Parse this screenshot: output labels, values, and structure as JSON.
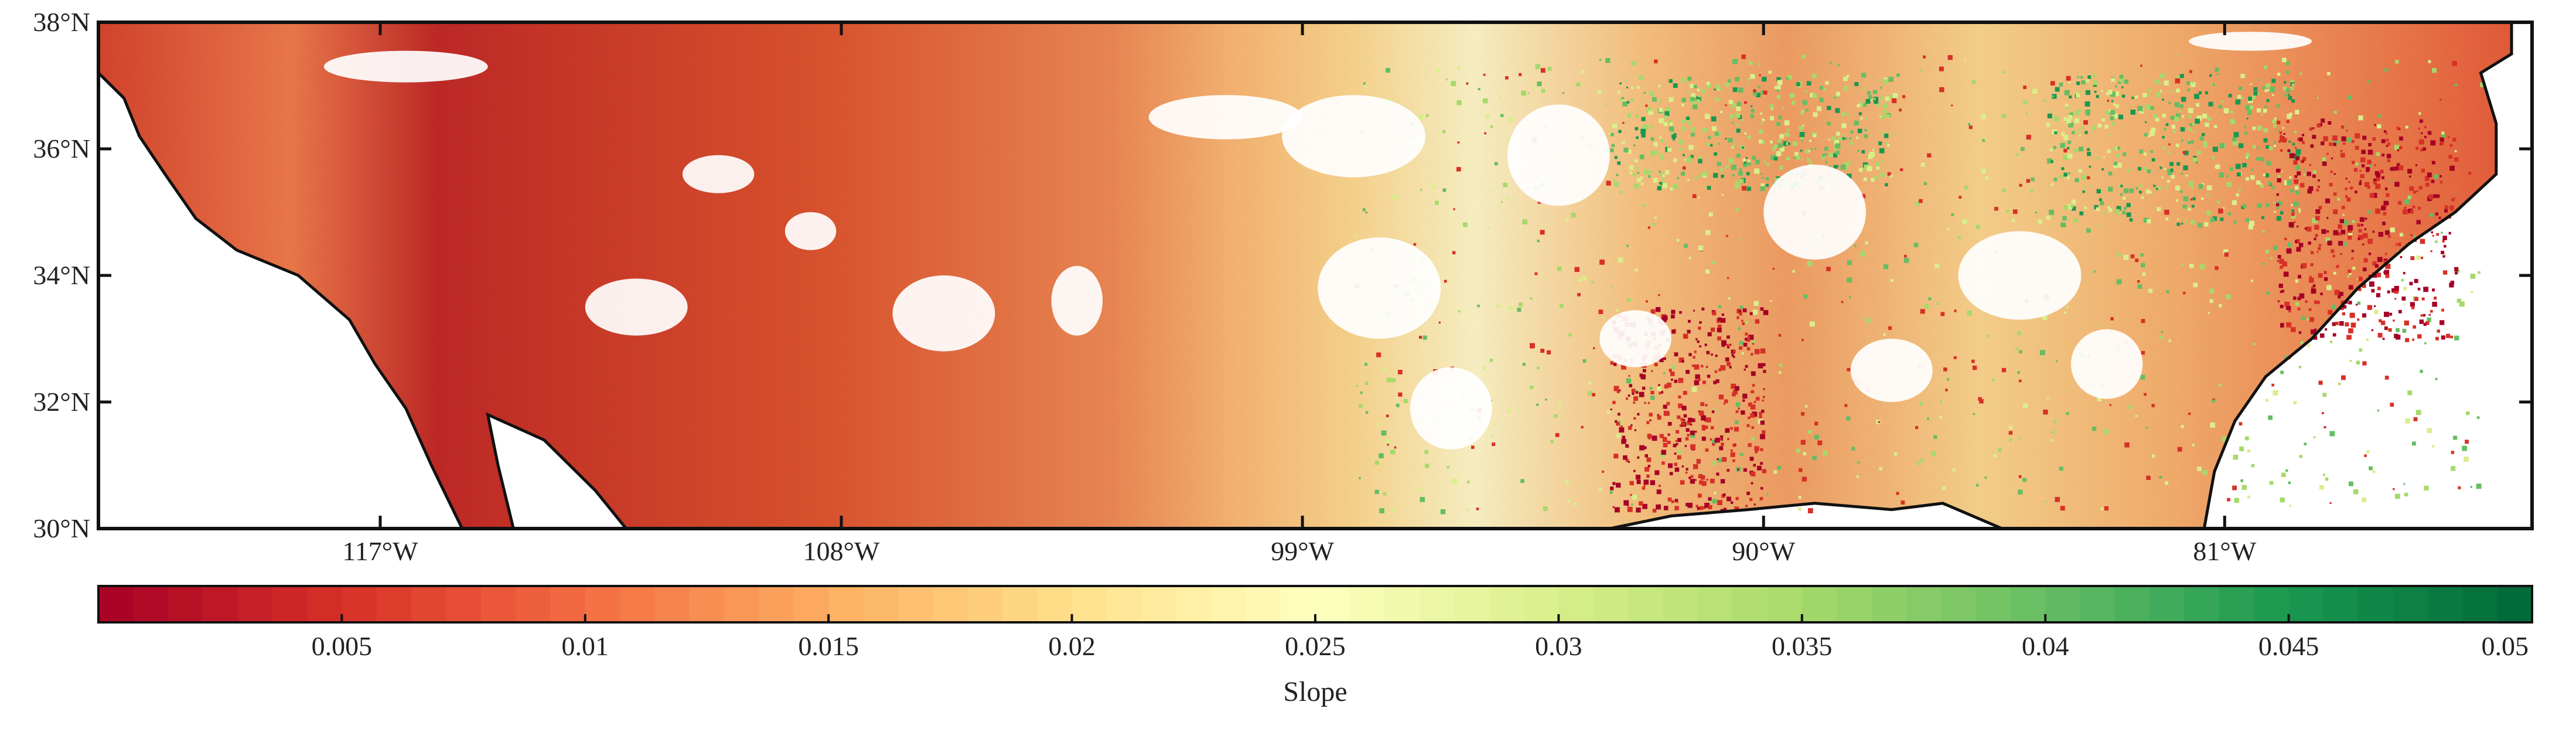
{
  "map": {
    "lat_labels": [
      "38°N",
      "36°N",
      "34°N",
      "32°N",
      "30°N"
    ],
    "lat_values": [
      38,
      36,
      34,
      32,
      30
    ],
    "lon_labels": [
      "117°W",
      "108°W",
      "99°W",
      "90°W",
      "81°W"
    ],
    "lon_values": [
      -117,
      -108,
      -99,
      -90,
      -81
    ],
    "lon_range": [
      -122.5,
      -75
    ],
    "lat_range": [
      30,
      38
    ],
    "colors": {
      "frame": "#111111",
      "coast": "#111111",
      "background": "#ffffff"
    }
  },
  "colorbar": {
    "title": "Slope",
    "tick_labels": [
      "0.005",
      "0.01",
      "0.015",
      "0.02",
      "0.025",
      "0.03",
      "0.035",
      "0.04",
      "0.045",
      "0.05"
    ],
    "tick_values": [
      0.005,
      0.01,
      0.015,
      0.02,
      0.025,
      0.03,
      0.035,
      0.04,
      0.045,
      0.05
    ],
    "range": [
      0,
      0.05
    ],
    "colormap": [
      "#a50026",
      "#d73027",
      "#f46d43",
      "#fdae61",
      "#fee08b",
      "#ffffbf",
      "#d9ef8b",
      "#a6d96a",
      "#66bd63",
      "#1a9850",
      "#006837"
    ]
  }
}
